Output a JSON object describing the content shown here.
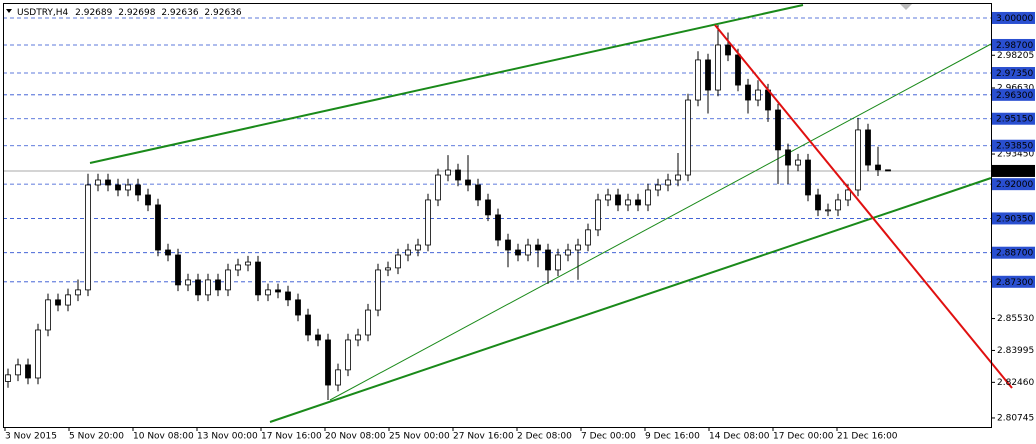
{
  "chart_data": {
    "type": "candlestick",
    "symbol": "USDTRY,H4",
    "open": [
      2.825,
      2.8282,
      2.833,
      2.8267,
      2.8498,
      2.8643,
      2.8618,
      2.8667,
      2.8691,
      2.9196,
      2.922,
      2.9196,
      2.9172,
      2.9196,
      2.9148,
      2.91,
      2.8883,
      2.8859,
      2.8715,
      2.8739,
      2.8667,
      2.8739,
      2.8691,
      2.8787,
      2.8811,
      2.8825,
      2.8667,
      2.8691,
      2.8681,
      2.8643,
      2.857,
      2.8474,
      2.845,
      2.8233,
      2.8306,
      2.845,
      2.8474,
      2.8594,
      2.8787,
      2.8797,
      2.8859,
      2.8883,
      2.8907,
      2.9124,
      2.9244,
      2.9268,
      2.922,
      2.9196,
      2.9124,
      2.9052,
      2.8931,
      2.8883,
      2.8859,
      2.8907,
      2.8883,
      2.8787,
      2.8859,
      2.8883,
      2.8907,
      2.898,
      2.9124,
      2.9148,
      2.91,
      2.9124,
      2.91,
      2.9172,
      2.9196,
      2.922,
      2.9244,
      2.9605,
      2.9798,
      2.9653,
      2.987,
      2.9822,
      2.9677,
      2.9605,
      2.9653,
      2.9557,
      2.9365,
      2.9292,
      2.9316,
      2.9148,
      2.9076,
      2.9076,
      2.9124,
      2.9172,
      2.9461,
      2.9292,
      2.92689
    ],
    "high": [
      2.8312,
      2.836,
      2.836,
      2.8528,
      2.8673,
      2.8673,
      2.8697,
      2.8741,
      2.925,
      2.925,
      2.925,
      2.9226,
      2.9226,
      2.9226,
      2.9178,
      2.913,
      2.8913,
      2.8889,
      2.8769,
      2.8769,
      2.8769,
      2.8769,
      2.8817,
      2.8841,
      2.8855,
      2.8855,
      2.8721,
      2.8721,
      2.8711,
      2.8673,
      2.86,
      2.8504,
      2.848,
      2.8336,
      2.848,
      2.8504,
      2.8624,
      2.8817,
      2.8827,
      2.8889,
      2.8913,
      2.8937,
      2.9154,
      2.9274,
      2.934,
      2.9298,
      2.934,
      2.9226,
      2.9154,
      2.9082,
      2.8961,
      2.8913,
      2.8937,
      2.8937,
      2.8913,
      2.8889,
      2.8913,
      2.8937,
      2.901,
      2.9154,
      2.9178,
      2.9178,
      2.9154,
      2.9154,
      2.9202,
      2.9226,
      2.925,
      2.935,
      2.9635,
      2.984,
      2.9828,
      2.9966,
      2.993,
      2.9852,
      2.9707,
      2.97,
      2.9683,
      2.9587,
      2.9395,
      2.9346,
      2.9346,
      2.9178,
      2.9106,
      2.9154,
      2.9202,
      2.9519,
      2.9491,
      2.938,
      2.92698
    ],
    "low": [
      2.822,
      2.8252,
      2.8237,
      2.8237,
      2.8468,
      2.8588,
      2.8588,
      2.8637,
      2.8661,
      2.9166,
      2.9166,
      2.9142,
      2.9142,
      2.9118,
      2.907,
      2.8853,
      2.8829,
      2.8685,
      2.8685,
      2.8637,
      2.8637,
      2.8661,
      2.8661,
      2.8757,
      2.8781,
      2.8637,
      2.8637,
      2.8651,
      2.8613,
      2.854,
      2.8444,
      2.842,
      2.8161,
      2.8203,
      2.8276,
      2.842,
      2.8444,
      2.8564,
      2.8757,
      2.8767,
      2.8829,
      2.8853,
      2.8877,
      2.9094,
      2.9214,
      2.919,
      2.9166,
      2.9094,
      2.9022,
      2.8901,
      2.88,
      2.8829,
      2.8829,
      2.88,
      2.872,
      2.8757,
      2.8829,
      2.874,
      2.8877,
      2.895,
      2.9094,
      2.907,
      2.907,
      2.907,
      2.907,
      2.9142,
      2.9166,
      2.919,
      2.9214,
      2.9575,
      2.954,
      2.9623,
      2.9792,
      2.9647,
      2.954,
      2.9575,
      2.95,
      2.92,
      2.92,
      2.9262,
      2.9118,
      2.9046,
      2.9046,
      2.9046,
      2.9094,
      2.9142,
      2.9262,
      2.9239,
      2.92636
    ],
    "close": [
      2.8282,
      2.833,
      2.8267,
      2.8498,
      2.8643,
      2.8618,
      2.8667,
      2.8691,
      2.9196,
      2.922,
      2.9196,
      2.9172,
      2.9196,
      2.9148,
      2.91,
      2.8883,
      2.8859,
      2.8715,
      2.8739,
      2.8667,
      2.8739,
      2.8691,
      2.8787,
      2.8811,
      2.8825,
      2.8667,
      2.8691,
      2.8681,
      2.8643,
      2.857,
      2.8474,
      2.845,
      2.8233,
      2.8306,
      2.845,
      2.8474,
      2.8594,
      2.8787,
      2.8797,
      2.8859,
      2.8883,
      2.8907,
      2.9124,
      2.9244,
      2.9268,
      2.922,
      2.9196,
      2.9124,
      2.9052,
      2.8931,
      2.8883,
      2.8859,
      2.8907,
      2.8883,
      2.8787,
      2.8859,
      2.8883,
      2.8907,
      2.898,
      2.9124,
      2.9148,
      2.91,
      2.9124,
      2.91,
      2.9172,
      2.9196,
      2.922,
      2.9244,
      2.9605,
      2.9798,
      2.9653,
      2.987,
      2.9822,
      2.9677,
      2.9605,
      2.9653,
      2.9557,
      2.9365,
      2.9292,
      2.9316,
      2.9148,
      2.9076,
      2.9076,
      2.9124,
      2.9172,
      2.9461,
      2.9292,
      2.92689,
      2.92636
    ],
    "ylim": [
      2.8031,
      3.0048
    ],
    "yticks": [
      2.98205,
      {
        "value": 2.9663,
        "label": "2.96630"
      },
      {
        "value": 2.9345,
        "label": "2.93450"
      },
      {
        "value": 2.8553,
        "label": "2.85530"
      },
      2.83995,
      {
        "value": 2.8246,
        "label": "2.82460"
      },
      2.80745
    ],
    "levels": [
      {
        "value": 3,
        "label": "3.00000"
      },
      {
        "value": 2.987,
        "label": "2.98700"
      },
      {
        "value": 2.9735,
        "label": "2.97350"
      },
      {
        "value": 2.963,
        "label": "2.96300"
      },
      {
        "value": 2.9515,
        "label": "2.95150"
      },
      {
        "value": 2.9385,
        "label": "2.93850"
      },
      {
        "value": 2.92,
        "label": "2.92000"
      },
      {
        "value": 2.9035,
        "label": "2.90350"
      },
      {
        "value": 2.887,
        "label": "2.88700"
      },
      {
        "value": 2.873,
        "label": "2.87300"
      }
    ],
    "x_labels": [
      "3 Nov 2015",
      "5 Nov 20:00",
      "10 Nov 08:00",
      "13 Nov 00:00",
      "17 Nov 16:00",
      "20 Nov 08:00",
      "25 Nov 00:00",
      "27 Nov 16:00",
      "2 Dec 08:00",
      "7 Dec 00:00",
      "9 Dec 16:00",
      "14 Dec 08:00",
      "17 Dec 00:00",
      "21 Dec 16:00"
    ],
    "level_color": "#2a4fd0",
    "up_color": "#ffffff",
    "down_color": "#000000"
  }
}
